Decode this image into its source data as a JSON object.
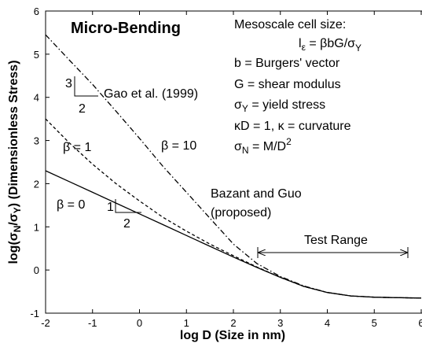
{
  "chart_data": {
    "type": "line",
    "title": "Micro-Bending",
    "x_label": "log D (Size in nm)",
    "y_label": "log(σN/σY) (Dimensionless Stress)",
    "xlim": [
      -2,
      6
    ],
    "xticks": [
      -2,
      -1,
      0,
      1,
      2,
      3,
      4,
      5,
      6
    ],
    "ylim": [
      -1,
      6
    ],
    "yticks": [
      -1,
      0,
      1,
      2,
      3,
      4,
      5,
      6
    ],
    "x": [
      -2,
      -1.5,
      -1,
      -0.5,
      0,
      0.5,
      1,
      1.5,
      2,
      2.5,
      3,
      3.5,
      4,
      4.5,
      5,
      5.5,
      6
    ],
    "series": [
      {
        "name": "β = 0",
        "color": "#000000",
        "dash": "solid",
        "values": [
          2.3,
          2.05,
          1.8,
          1.55,
          1.3,
          1.05,
          0.8,
          0.55,
          0.3,
          0.06,
          -0.17,
          -0.38,
          -0.52,
          -0.6,
          -0.63,
          -0.64,
          -0.65
        ]
      },
      {
        "name": "β = 1",
        "color": "#000000",
        "dash": "dashed",
        "values": [
          3.5,
          2.95,
          2.45,
          2.0,
          1.6,
          1.22,
          0.9,
          0.6,
          0.33,
          0.07,
          -0.17,
          -0.38,
          -0.52,
          -0.6,
          -0.63,
          -0.64,
          -0.65
        ]
      },
      {
        "name": "β = 10",
        "color": "#000000",
        "dash": "dashdot",
        "values": [
          5.45,
          4.87,
          4.3,
          3.68,
          3.05,
          2.4,
          1.8,
          1.2,
          0.6,
          0.15,
          -0.15,
          -0.37,
          -0.52,
          -0.6,
          -0.63,
          -0.64,
          -0.65
        ]
      }
    ],
    "annotations": {
      "heading": "Mesoscale cell size:",
      "formula": [
        "l",
        "ε",
        " = βbG/σ",
        "Y"
      ],
      "burgers": "b = Burgers' vector",
      "shear": "G = shear modulus",
      "yield": [
        "σ",
        "Y",
        " = yield stress"
      ],
      "curvature": "κD = 1, κ = curvature",
      "nominal": [
        "σ",
        "N",
        " = M/D",
        "2"
      ],
      "gao": "Gao et al. (1999)",
      "bazant": [
        "Bazant and Guo",
        "(proposed)"
      ],
      "test_range": "Test Range",
      "slope_gao": [
        "3",
        "2"
      ],
      "slope_bazant": [
        "1",
        "2"
      ]
    }
  }
}
